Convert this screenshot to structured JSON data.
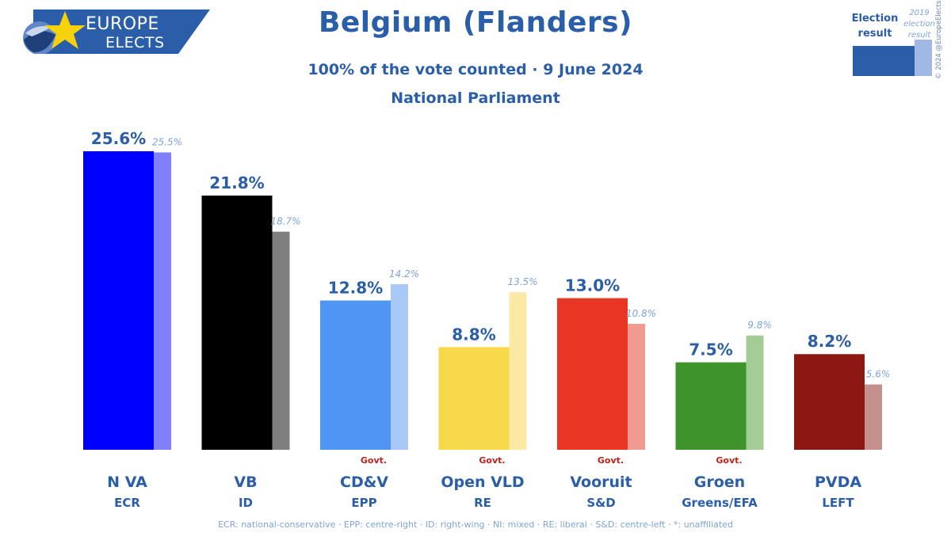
{
  "logo": {
    "line1": "EUROPE",
    "line2": "ELECTS",
    "color": "#2a5ea8",
    "star_color": "#f5d20b"
  },
  "header": {
    "title": "Belgium (Flanders)",
    "subtitle": "100% of the vote counted · 9 June 2024",
    "subtitle2": "National Parliament"
  },
  "legend": {
    "current_label": "Election result",
    "previous_label": "2019 election result",
    "current_color": "#2a5ea8",
    "previous_color": "#9fb9e3"
  },
  "copyright": "© 2024 @EuropeElects",
  "footnote": "ECR: national-conservative · EPP: centre-right · ID: right-wing · NI: mixed · RE: liberal · S&D: centre-left · *: unaffiliated",
  "chart_data": {
    "type": "bar",
    "categories": [
      "N VA",
      "VB",
      "CD&V",
      "Open VLD",
      "Vooruit",
      "Groen",
      "PVDA"
    ],
    "groups": [
      "ECR",
      "ID",
      "EPP",
      "RE",
      "S&D",
      "Greens/EFA",
      "LEFT"
    ],
    "government": [
      false,
      false,
      true,
      true,
      true,
      true,
      false
    ],
    "government_label": "Govt.",
    "series": [
      {
        "name": "Election result",
        "values": [
          25.6,
          21.8,
          12.8,
          8.8,
          13.0,
          7.5,
          8.2
        ],
        "labels": [
          "25.6%",
          "21.8%",
          "12.8%",
          "8.8%",
          "13.0%",
          "7.5%",
          "8.2%"
        ]
      },
      {
        "name": "2019 election result",
        "values": [
          25.5,
          18.7,
          14.2,
          13.5,
          10.8,
          9.8,
          5.6
        ],
        "labels": [
          "25.5%",
          "18.7%",
          "14.2%",
          "13.5%",
          "10.8%",
          "9.8%",
          "5.6%"
        ]
      }
    ],
    "colors": [
      "#0000ff",
      "#000000",
      "#4f95f2",
      "#f7d94a",
      "#e83524",
      "#3e942b",
      "#8b1811"
    ],
    "prev_colors": [
      "#8080fb",
      "#7f7f7f",
      "#a8c9f8",
      "#fbe9a4",
      "#f19a90",
      "#a3cc96",
      "#c5908c"
    ],
    "ylim": [
      0,
      25.6
    ],
    "grid": false,
    "legend_position": "top-right"
  }
}
